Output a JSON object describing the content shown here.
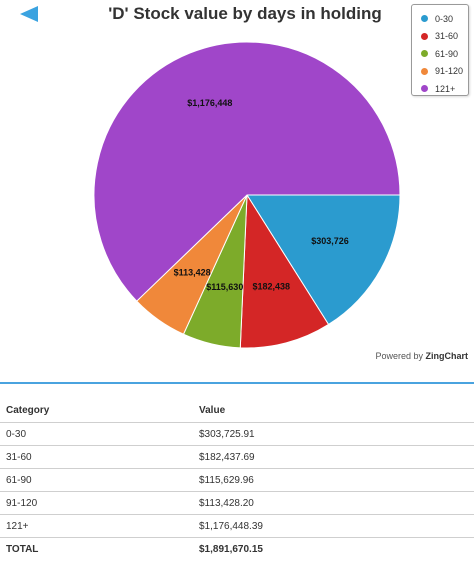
{
  "chart_data": {
    "type": "pie",
    "title": "'D' Stock value by days in holding",
    "categories": [
      "0-30",
      "31-60",
      "61-90",
      "91-120",
      "121+"
    ],
    "values": [
      303725.91,
      182437.69,
      115629.96,
      113428.2,
      1176448.39
    ],
    "data_labels": [
      "$303,726",
      "$182,438",
      "$115,630",
      "$113,428",
      "$1,176,448"
    ],
    "colors": [
      "#2b9bcf",
      "#d42626",
      "#7dab2a",
      "#f0883a",
      "#a046c9"
    ],
    "legend_position": "top-right"
  },
  "ui": {
    "powered_by": "Powered by",
    "powered_brand": "ZingChart",
    "back_icon": "back-arrow-icon"
  },
  "table": {
    "headers": [
      "Category",
      "Value"
    ],
    "rows": [
      {
        "category": "0-30",
        "value": "$303,725.91"
      },
      {
        "category": "31-60",
        "value": "$182,437.69"
      },
      {
        "category": "61-90",
        "value": "$115,629.96"
      },
      {
        "category": "91-120",
        "value": "$113,428.20"
      },
      {
        "category": "121+",
        "value": "$1,176,448.39"
      }
    ],
    "total": {
      "label": "TOTAL",
      "value": "$1,891,670.15"
    }
  }
}
